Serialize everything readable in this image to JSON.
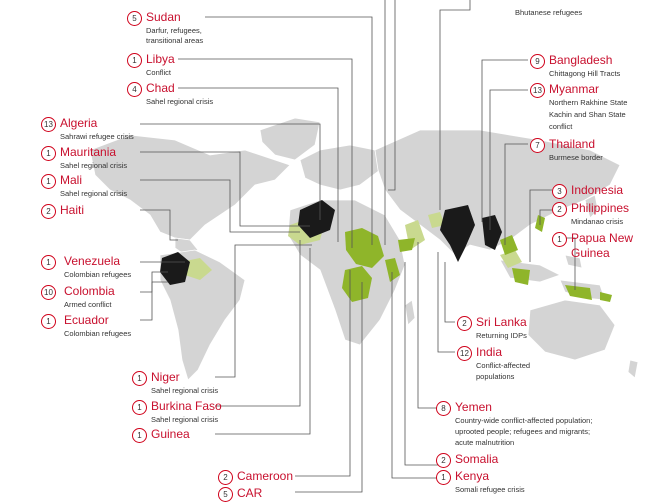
{
  "colors": {
    "land": "#d4d4d4",
    "ocean": "#ffffff",
    "highlight_dark": "#1a1a1a",
    "highlight_green": "#8fb52a",
    "highlight_light_green": "#c9d98f",
    "label_accent": "#c8102e"
  },
  "labels": {
    "top_stub": {
      "desc": "Bhutanese refugees"
    },
    "sudan": {
      "num": "5",
      "country": "Sudan",
      "desc": [
        "Darfur, refugees,",
        "transitional areas"
      ]
    },
    "libya": {
      "num": "1",
      "country": "Libya",
      "desc": [
        "Conflict"
      ]
    },
    "chad": {
      "num": "4",
      "country": "Chad",
      "desc": [
        "Sahel regional crisis"
      ]
    },
    "algeria": {
      "num": "13",
      "country": "Algeria",
      "desc": [
        "Sahrawi refugee crisis"
      ]
    },
    "mauritania": {
      "num": "1",
      "country": "Mauritania",
      "desc": [
        "Sahel regional crisis"
      ]
    },
    "mali": {
      "num": "1",
      "country": "Mali",
      "desc": [
        "Sahel regional crisis"
      ]
    },
    "haiti": {
      "num": "2",
      "country": "Haiti",
      "desc": []
    },
    "venezuela": {
      "num": "1",
      "country": "Venezuela",
      "desc": [
        "Colombian refugees"
      ]
    },
    "colombia": {
      "num": "10",
      "country": "Colombia",
      "desc": [
        "Armed conflict"
      ]
    },
    "ecuador": {
      "num": "1",
      "country": "Ecuador",
      "desc": [
        "Colombian refugees"
      ]
    },
    "niger": {
      "num": "1",
      "country": "Niger",
      "desc": [
        "Sahel regional crisis"
      ]
    },
    "burkina": {
      "num": "1",
      "country": "Burkina Faso",
      "desc": [
        "Sahel regional crisis"
      ]
    },
    "guinea": {
      "num": "1",
      "country": "Guinea",
      "desc": []
    },
    "cameroon": {
      "num": "2",
      "country": "Cameroon",
      "desc": []
    },
    "car": {
      "num": "5",
      "country": "CAR",
      "desc": []
    },
    "bangladesh": {
      "num": "9",
      "country": "Bangladesh",
      "desc": [
        "Chittagong Hill Tracts"
      ]
    },
    "myanmar": {
      "num": "13",
      "country": "Myanmar",
      "desc": [
        "Northern Rakhine State",
        "Kachin and Shan State",
        "conflict"
      ]
    },
    "thailand": {
      "num": "7",
      "country": "Thailand",
      "desc": [
        "Burmese border"
      ]
    },
    "indonesia": {
      "num": "3",
      "country": "Indonesia",
      "desc": []
    },
    "philippines": {
      "num": "2",
      "country": "Philippines",
      "desc": [
        "Mindanao crisis"
      ]
    },
    "png": {
      "num": "1",
      "country": "Papua New",
      "country2": "Guinea",
      "desc": []
    },
    "srilanka": {
      "num": "2",
      "country": "Sri Lanka",
      "desc": [
        "Returning IDPs"
      ]
    },
    "india": {
      "num": "12",
      "country": "India",
      "desc": [
        "Conflict-affected",
        "populations"
      ]
    },
    "yemen": {
      "num": "8",
      "country": "Yemen",
      "desc": [
        "Country-wide conflict-affected population;",
        "uprooted people; refugees and migrants;",
        "acute malnutrition"
      ]
    },
    "somalia": {
      "num": "2",
      "country": "Somalia",
      "desc": []
    },
    "kenya": {
      "num": "1",
      "country": "Kenya",
      "desc": [
        "Somali refugee crisis"
      ]
    }
  }
}
